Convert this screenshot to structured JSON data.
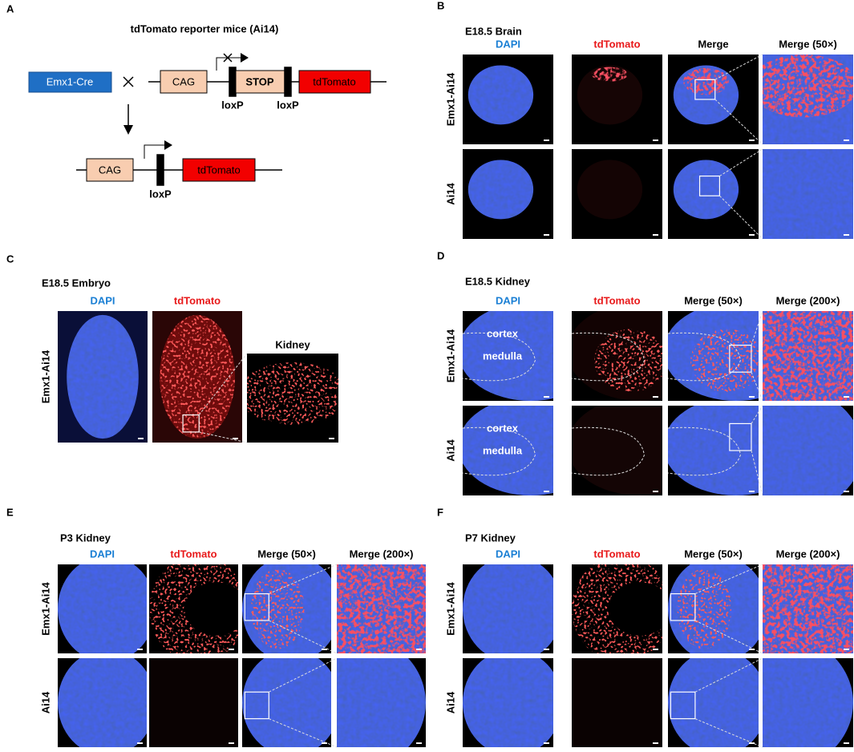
{
  "panel_a": {
    "letter": "A",
    "title": "tdTomato reporter mice (Ai14)",
    "construct": {
      "driver": "Emx1-Cre",
      "promoter": "CAG",
      "stop": "STOP",
      "reporter": "tdTomato",
      "sites": [
        "loxP",
        "loxP"
      ]
    },
    "recombined": {
      "promoter": "CAG",
      "site": "loxP",
      "reporter": "tdTomato"
    }
  },
  "panel_b": {
    "letter": "B",
    "title": "E18.5 Brain",
    "columns": [
      "DAPI",
      "tdTomato",
      "Merge",
      "Merge (50×)"
    ],
    "rows": [
      "Emx1-Ai14",
      "Ai14"
    ]
  },
  "panel_c": {
    "letter": "C",
    "title": "E18.5 Embryo",
    "columns": [
      "DAPI",
      "tdTomato"
    ],
    "inset_title": "Kidney",
    "rows": [
      "Emx1-Ai14"
    ]
  },
  "panel_d": {
    "letter": "D",
    "title": "E18.5 Kidney",
    "columns": [
      "DAPI",
      "tdTomato",
      "Merge (50×)",
      "Merge (200×)"
    ],
    "rows": [
      "Emx1-Ai14",
      "Ai14"
    ],
    "regions": [
      [
        "cortex",
        "medulla"
      ],
      [
        "cortex",
        "medulla"
      ]
    ]
  },
  "panel_e": {
    "letter": "E",
    "title": "P3 Kidney",
    "columns": [
      "DAPI",
      "tdTomato",
      "Merge (50×)",
      "Merge (200×)"
    ],
    "rows": [
      "Emx1-Ai14",
      "Ai14"
    ]
  },
  "panel_f": {
    "letter": "F",
    "title": "P7 Kidney",
    "columns": [
      "DAPI",
      "tdTomato",
      "Merge (50×)",
      "Merge (200×)"
    ],
    "rows": [
      "Emx1-Ai14",
      "Ai14"
    ]
  }
}
